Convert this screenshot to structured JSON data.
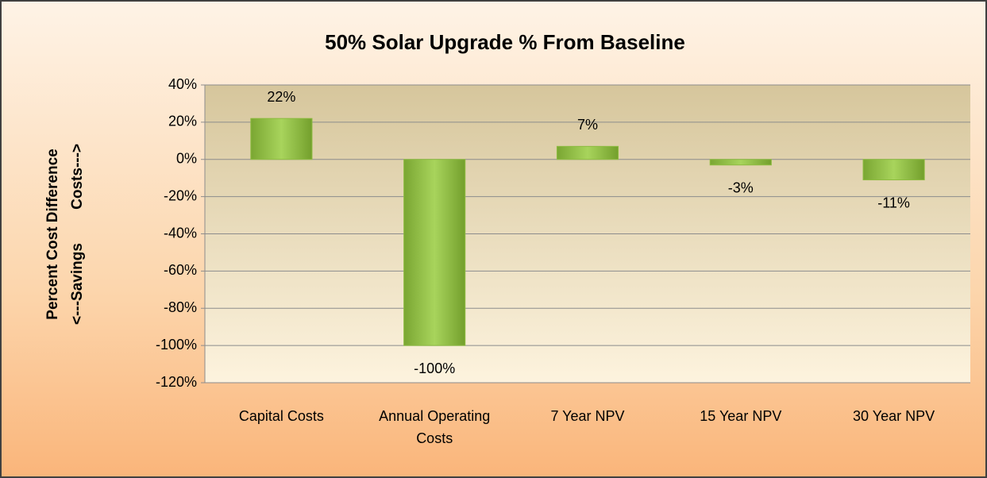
{
  "chart_data": {
    "type": "bar",
    "title": "50% Solar Upgrade % From Baseline",
    "y_label": [
      "Percent Cost Difference",
      "<---Savings        Costs--->"
    ],
    "categories": [
      "Capital Costs",
      "Annual Operating Costs",
      "7 Year NPV",
      "15 Year NPV",
      "30 Year NPV"
    ],
    "values": [
      22,
      -100,
      7,
      -3,
      -11
    ],
    "value_labels": [
      "22%",
      "-100%",
      "7%",
      "-3%",
      "-11%"
    ],
    "color": "#8dbb40",
    "ylim": [
      -120,
      40
    ],
    "yticks": [
      {
        "value": -120,
        "label": "-120%"
      },
      {
        "value": -100,
        "label": "-100%"
      },
      {
        "value": -80,
        "label": "-80%"
      },
      {
        "value": -60,
        "label": "-60%"
      },
      {
        "value": -40,
        "label": "-40%"
      },
      {
        "value": -20,
        "label": "-20%"
      },
      {
        "value": 0,
        "label": "0%"
      },
      {
        "value": 20,
        "label": "20%"
      },
      {
        "value": 40,
        "label": "40%"
      }
    ],
    "grid": true
  }
}
